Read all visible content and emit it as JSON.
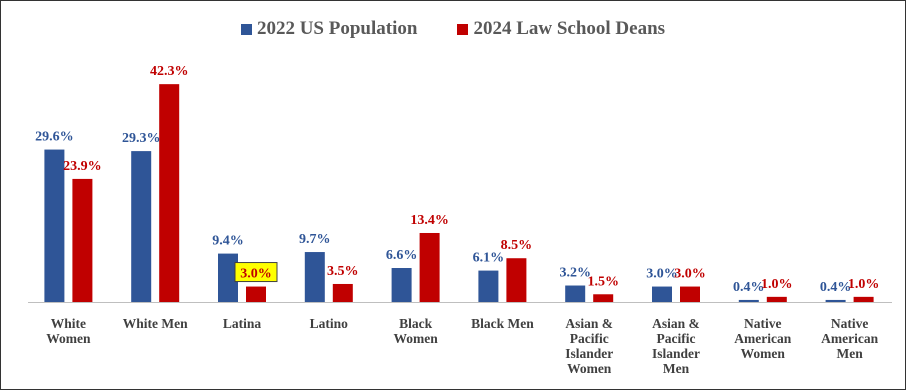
{
  "chart_data": {
    "type": "bar",
    "title": "",
    "xlabel": "",
    "ylabel": "",
    "ylim": [
      0,
      45
    ],
    "grid": false,
    "legend_position": "top-center",
    "colors": {
      "us_population": "#2F5597",
      "law_deans": "#C00000",
      "highlight_fill": "#FFFF00"
    },
    "categories": [
      [
        "White",
        "Women"
      ],
      [
        "White Men"
      ],
      [
        "Latina"
      ],
      [
        "Latino"
      ],
      [
        "Black",
        "Women"
      ],
      [
        "Black Men"
      ],
      [
        "Asian &",
        "Pacific",
        "Islander",
        "Women"
      ],
      [
        "Asian &",
        "Pacific",
        "Islander",
        "Men"
      ],
      [
        "Native",
        "American",
        "Women"
      ],
      [
        "Native",
        "American",
        "Men"
      ]
    ],
    "series": [
      {
        "name": "2022 US Population",
        "values": [
          29.6,
          29.3,
          9.4,
          9.7,
          6.6,
          6.1,
          3.2,
          3.0,
          0.4,
          0.4
        ],
        "labels": [
          "29.6%",
          "29.3%",
          "9.4%",
          "9.7%",
          "6.6%",
          "6.1%",
          "3.2%",
          "3.0%",
          "0.4%",
          "0.4%"
        ]
      },
      {
        "name": "2024 Law School Deans",
        "values": [
          23.9,
          42.3,
          3.0,
          3.5,
          13.4,
          8.5,
          1.5,
          3.0,
          1.0,
          1.0
        ],
        "labels": [
          "23.9%",
          "42.3%",
          "3.0%",
          "3.5%",
          "13.4%",
          "8.5%",
          "1.5%",
          "3.0%",
          "1.0%",
          "1.0%"
        ]
      }
    ],
    "highlighted": {
      "series": 1,
      "index": 2
    }
  }
}
